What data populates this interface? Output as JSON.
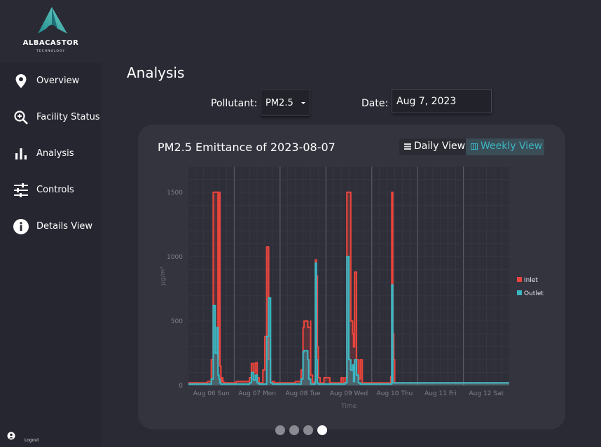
{
  "brand": {
    "name": "ALBACASTOR",
    "sub": "TECHNOLOGY"
  },
  "nav": [
    {
      "label": "Overview",
      "icon": "location-pin-icon"
    },
    {
      "label": "Facility Status",
      "icon": "magnify-plus-icon"
    },
    {
      "label": "Analysis",
      "icon": "bar-chart-icon"
    },
    {
      "label": "Controls",
      "icon": "sliders-icon"
    },
    {
      "label": "Details View",
      "icon": "info-icon"
    }
  ],
  "logout": {
    "label": "Logout",
    "icon": "user-icon"
  },
  "page": {
    "title": "Analysis"
  },
  "filters": {
    "pollutant_label": "Pollutant:",
    "pollutant_value": "PM2.5",
    "date_label": "Date:",
    "date_value": "Aug 7, 2023"
  },
  "chart_card": {
    "title": "PM2.5 Emittance of 2023-08-07",
    "daily_label": "Daily View",
    "weekly_label": "Weekly View",
    "active_view": "Weekly View"
  },
  "colors": {
    "inlet": "#e8453c",
    "outlet": "#3ab7c3",
    "accent": "#3ab7c3"
  },
  "carousel": {
    "count": 4,
    "active": 4
  },
  "chart_data": {
    "type": "line",
    "title": "PM2.5 Emittance of 2023-08-07",
    "xlabel": "Time",
    "ylabel": "µg/m³",
    "ylim": [
      0,
      1700
    ],
    "xlim": [
      0,
      168
    ],
    "yticks": [
      0,
      500,
      1000,
      1500
    ],
    "xticks": [
      {
        "x": 12,
        "label": "Aug 06 Sun"
      },
      {
        "x": 36,
        "label": "Aug 07 Mon"
      },
      {
        "x": 60,
        "label": "Aug 08 Tue"
      },
      {
        "x": 84,
        "label": "Aug 09 Wed"
      },
      {
        "x": 108,
        "label": "Aug 10 Thu"
      },
      {
        "x": 132,
        "label": "Aug 11 Fri"
      },
      {
        "x": 156,
        "label": "Aug 12 Sat"
      }
    ],
    "legend": "right",
    "grid": true,
    "series": [
      {
        "name": "Inlet",
        "color": "#e8453c",
        "x": [
          0,
          7,
          10,
          12,
          13,
          13.5,
          15,
          15.5,
          16,
          16.5,
          17,
          17.5,
          18,
          18.5,
          19,
          20,
          24,
          24,
          25,
          28,
          30,
          32,
          33,
          34,
          35,
          36,
          37,
          38,
          39,
          40,
          41,
          42,
          43,
          44,
          45,
          46,
          48,
          51,
          56,
          59,
          60,
          60.5,
          62,
          62.5,
          64,
          64,
          65,
          66,
          66.5,
          67,
          67.5,
          68,
          69,
          70,
          71,
          72,
          74,
          78,
          80,
          81,
          82,
          83,
          84,
          85,
          86,
          86.5,
          87,
          88,
          89,
          89.5,
          90,
          91,
          94,
          98,
          100,
          103,
          104,
          106,
          106.5,
          107,
          107.5,
          108,
          168
        ],
        "y": [
          20,
          20,
          30,
          200,
          1500,
          1500,
          1500,
          200,
          1500,
          150,
          30,
          60,
          30,
          20,
          20,
          20,
          20,
          20,
          30,
          30,
          30,
          60,
          170,
          100,
          175,
          60,
          20,
          20,
          120,
          380,
          1075,
          200,
          20,
          30,
          20,
          20,
          20,
          20,
          30,
          120,
          450,
          500,
          500,
          450,
          500,
          80,
          20,
          30,
          975,
          850,
          300,
          60,
          20,
          20,
          60,
          60,
          20,
          20,
          60,
          20,
          60,
          1500,
          1500,
          500,
          400,
          300,
          880,
          200,
          60,
          50,
          200,
          20,
          20,
          20,
          20,
          20,
          20,
          70,
          1500,
          400,
          200,
          20,
          20
        ]
      },
      {
        "name": "Outlet",
        "color": "#3ab7c3",
        "x": [
          0,
          10,
          12,
          13,
          14,
          15,
          15.5,
          16,
          16.5,
          17,
          18,
          24,
          28,
          32,
          33,
          34,
          35,
          36,
          37,
          38,
          40,
          41,
          42,
          43,
          44,
          48,
          56,
          59,
          60,
          60.5,
          62,
          62.5,
          63,
          64,
          66,
          66.5,
          67,
          67.5,
          68,
          72,
          78,
          81,
          82,
          83,
          84,
          85,
          86,
          86.5,
          87,
          88,
          89,
          90,
          94,
          100,
          103,
          104,
          104.5,
          105,
          105.5,
          106,
          106.5,
          107,
          168
        ],
        "y": [
          10,
          10,
          50,
          620,
          250,
          450,
          80,
          50,
          20,
          10,
          10,
          10,
          10,
          20,
          100,
          40,
          80,
          20,
          10,
          10,
          10,
          380,
          680,
          20,
          10,
          10,
          10,
          50,
          260,
          270,
          270,
          200,
          50,
          10,
          10,
          950,
          200,
          20,
          10,
          10,
          10,
          10,
          20,
          1000,
          200,
          120,
          160,
          30,
          200,
          80,
          20,
          10,
          10,
          10,
          10,
          10,
          10,
          10,
          10,
          10,
          780,
          20,
          20
        ]
      }
    ]
  }
}
